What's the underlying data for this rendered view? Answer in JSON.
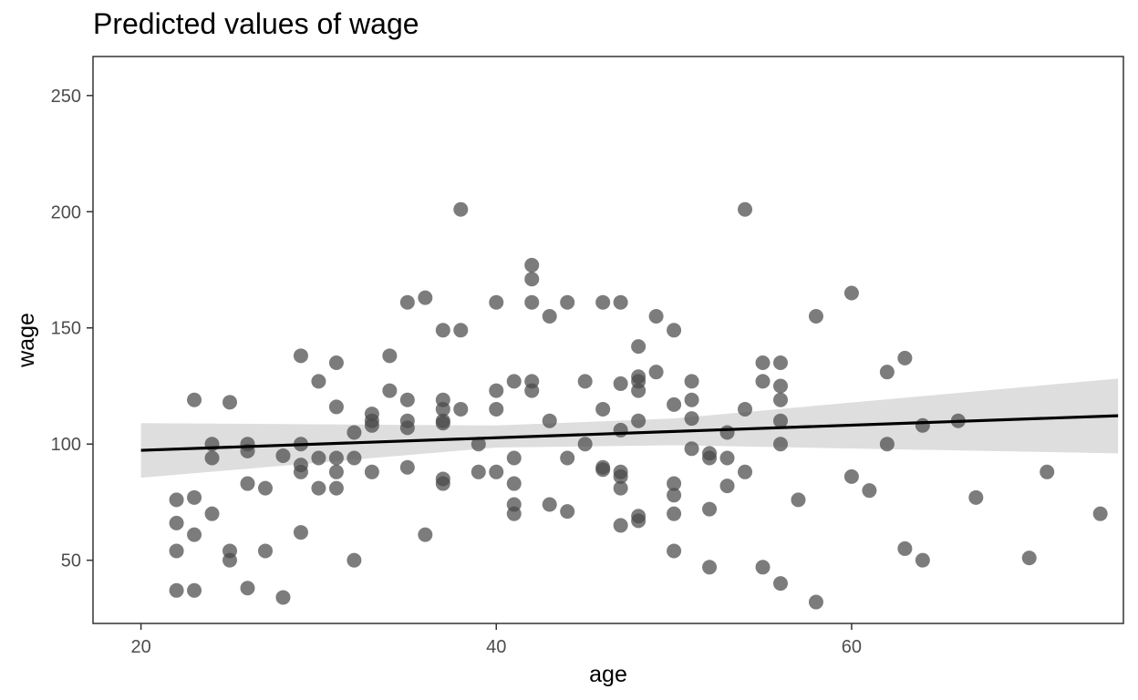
{
  "chart_data": {
    "type": "scatter",
    "title": "Predicted values of wage",
    "xlabel": "age",
    "ylabel": "wage",
    "xlim": [
      17.3,
      75.3
    ],
    "ylim": [
      22.8,
      266.8
    ],
    "xticks": [
      20,
      40,
      60
    ],
    "yticks": [
      50,
      100,
      150,
      200,
      250
    ],
    "xtick_labels": [
      "20",
      "40",
      "60"
    ],
    "ytick_labels": [
      "50",
      "100",
      "150",
      "200",
      "250"
    ],
    "grid": false,
    "legend": "none",
    "colors": {
      "points": "#4a4a4a",
      "fit_line": "#000000",
      "ribbon": "#dedede",
      "frame": "#333333"
    },
    "fit_line": {
      "x": [
        20,
        75
      ],
      "y": [
        97.3,
        112.2
      ]
    },
    "confidence_band": {
      "x": [
        20,
        40,
        50,
        75
      ],
      "lower": [
        85.5,
        98.5,
        99.5,
        96.0
      ],
      "upper": [
        109.0,
        108.0,
        111.0,
        128.2
      ]
    },
    "points": {
      "x": [
        22,
        22,
        22,
        22,
        23,
        23,
        23,
        23,
        24,
        24,
        24,
        25,
        25,
        25,
        26,
        26,
        26,
        26,
        27,
        27,
        28,
        28,
        29,
        29,
        29,
        29,
        29,
        30,
        30,
        30,
        31,
        31,
        31,
        31,
        31,
        32,
        32,
        32,
        33,
        33,
        33,
        33,
        34,
        34,
        35,
        35,
        35,
        35,
        35,
        36,
        36,
        37,
        37,
        37,
        37,
        37,
        37,
        37,
        38,
        38,
        38,
        39,
        39,
        40,
        40,
        40,
        40,
        41,
        41,
        41,
        41,
        41,
        42,
        42,
        42,
        42,
        42,
        43,
        43,
        43,
        44,
        44,
        44,
        45,
        45,
        46,
        46,
        46,
        46,
        47,
        47,
        47,
        47,
        47,
        47,
        47,
        48,
        48,
        48,
        48,
        48,
        48,
        48,
        49,
        49,
        50,
        50,
        50,
        50,
        50,
        50,
        51,
        51,
        51,
        51,
        52,
        52,
        52,
        52,
        53,
        53,
        53,
        54,
        54,
        54,
        55,
        55,
        55,
        56,
        56,
        56,
        56,
        56,
        56,
        57,
        58,
        58,
        60,
        60,
        61,
        62,
        62,
        63,
        63,
        64,
        64,
        66,
        67,
        70,
        71,
        74
      ],
      "y": [
        76,
        66,
        54,
        37,
        119,
        77,
        61,
        37,
        100,
        94,
        70,
        118,
        54,
        50,
        100,
        97,
        83,
        38,
        81,
        54,
        95,
        34,
        138,
        100,
        91,
        88,
        62,
        127,
        94,
        81,
        135,
        116,
        94,
        88,
        81,
        105,
        94,
        50,
        113,
        110,
        108,
        88,
        138,
        123,
        161,
        119,
        110,
        107,
        90,
        163,
        61,
        149,
        119,
        115,
        110,
        109,
        85,
        83,
        201,
        149,
        115,
        100,
        88,
        161,
        123,
        115,
        88,
        127,
        94,
        83,
        74,
        70,
        177,
        171,
        161,
        127,
        123,
        155,
        110,
        74,
        161,
        94,
        71,
        127,
        100,
        161,
        115,
        90,
        89,
        161,
        126,
        106,
        88,
        86,
        81,
        65,
        142,
        129,
        127,
        123,
        110,
        69,
        67,
        155,
        131,
        149,
        117,
        83,
        78,
        70,
        54,
        127,
        111,
        98,
        119,
        96,
        94,
        72,
        47,
        105,
        94,
        82,
        201,
        115,
        88,
        135,
        127,
        47,
        135,
        125,
        119,
        110,
        100,
        40,
        76,
        155,
        32,
        165,
        86,
        80,
        131,
        100,
        137,
        55,
        108,
        50,
        110,
        77,
        51,
        88,
        70
      ]
    }
  }
}
